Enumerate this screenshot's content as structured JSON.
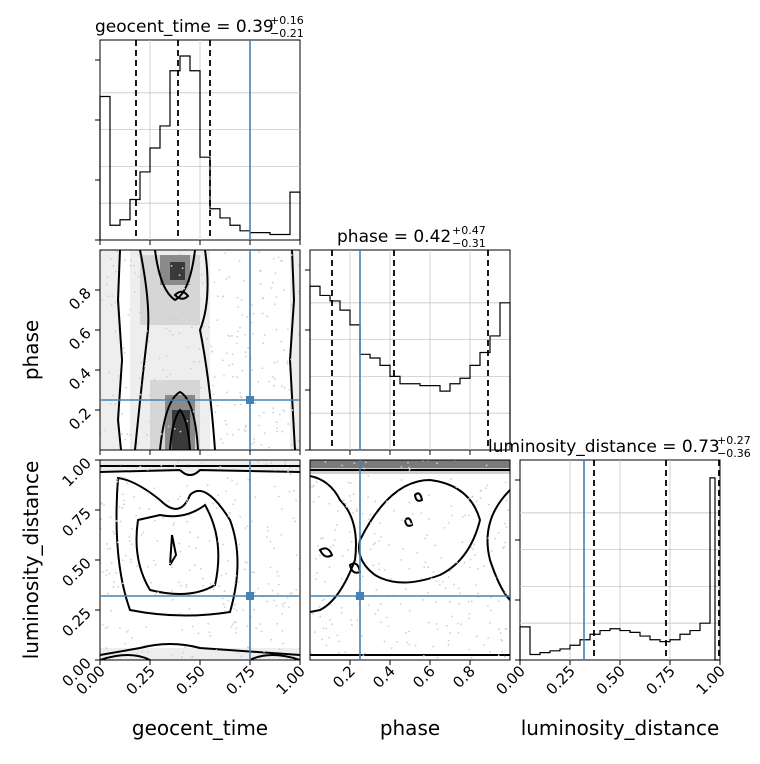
{
  "colors": {
    "truth": "#4682b4",
    "line": "#000000",
    "grid": "#c8c8c8"
  },
  "chart_data": {
    "type": "corner",
    "parameters": [
      "geocent_time",
      "phase",
      "luminosity_distance"
    ],
    "truths": {
      "geocent_time": 0.75,
      "phase": 0.25,
      "luminosity_distance": 0.32
    },
    "diagonal": [
      {
        "parameter": "geocent_time",
        "title_prefix": "geocent_time = ",
        "title_value": "0.39",
        "title_plus": "+0.16",
        "title_minus": "−0.21",
        "xlim": [
          0,
          1
        ],
        "quantiles": [
          0.18,
          0.39,
          0.55
        ],
        "bin_edges": [
          0,
          0.05,
          0.1,
          0.15,
          0.2,
          0.25,
          0.3,
          0.35,
          0.4,
          0.45,
          0.5,
          0.55,
          0.6,
          0.65,
          0.7,
          0.75,
          0.8,
          0.85,
          0.9,
          0.95,
          1.0
        ],
        "heights": [
          0.78,
          0.08,
          0.11,
          0.22,
          0.37,
          0.5,
          0.62,
          0.92,
          1.0,
          0.92,
          0.45,
          0.17,
          0.12,
          0.08,
          0.05,
          0.04,
          0.04,
          0.03,
          0.03,
          0.26
        ]
      },
      {
        "parameter": "phase",
        "title_prefix": "phase = ",
        "title_value": "0.42",
        "title_plus": "+0.47",
        "title_minus": "−0.31",
        "xlim": [
          0,
          1
        ],
        "quantiles": [
          0.11,
          0.42,
          0.89
        ],
        "bin_edges": [
          0,
          0.05,
          0.1,
          0.15,
          0.2,
          0.25,
          0.3,
          0.35,
          0.4,
          0.45,
          0.5,
          0.55,
          0.6,
          0.65,
          0.7,
          0.75,
          0.8,
          0.85,
          0.9,
          0.95,
          1.0
        ],
        "heights": [
          0.89,
          0.84,
          0.81,
          0.76,
          0.68,
          0.52,
          0.5,
          0.46,
          0.4,
          0.36,
          0.36,
          0.35,
          0.35,
          0.32,
          0.36,
          0.39,
          0.46,
          0.53,
          0.62,
          0.8
        ]
      },
      {
        "parameter": "luminosity_distance",
        "title_prefix": "luminosity_distance = ",
        "title_value": "0.73",
        "title_plus": "+0.27",
        "title_minus": "−0.36",
        "xlim": [
          0,
          1
        ],
        "quantiles": [
          0.37,
          0.73,
          0.995
        ],
        "bin_edges": [
          0,
          0.05,
          0.1,
          0.15,
          0.2,
          0.25,
          0.3,
          0.35,
          0.4,
          0.45,
          0.5,
          0.55,
          0.6,
          0.65,
          0.7,
          0.75,
          0.8,
          0.85,
          0.9,
          0.95,
          0.975,
          1.0
        ],
        "heights": [
          0.18,
          0.03,
          0.04,
          0.05,
          0.06,
          0.08,
          0.11,
          0.14,
          0.16,
          0.17,
          0.16,
          0.15,
          0.13,
          0.11,
          0.1,
          0.11,
          0.14,
          0.16,
          0.2,
          0.99,
          0.0
        ]
      }
    ],
    "axis_labels": {
      "geocent_time": "geocent_time",
      "phase": "phase",
      "luminosity_distance": "luminosity_distance"
    },
    "tick_labels": {
      "geocent_time_x": [
        "0.00",
        "0.25",
        "0.50",
        "0.75",
        "1.00"
      ],
      "phase_x": [
        "0.2",
        "0.4",
        "0.6",
        "0.8"
      ],
      "luminosity_distance_x": [
        "0.00",
        "0.25",
        "0.50",
        "0.75",
        "1.00"
      ],
      "phase_y": [
        "0.2",
        "0.4",
        "0.6",
        "0.8"
      ],
      "luminosity_distance_y": [
        "0.00",
        "0.25",
        "0.50",
        "0.75",
        "1.00"
      ]
    }
  }
}
